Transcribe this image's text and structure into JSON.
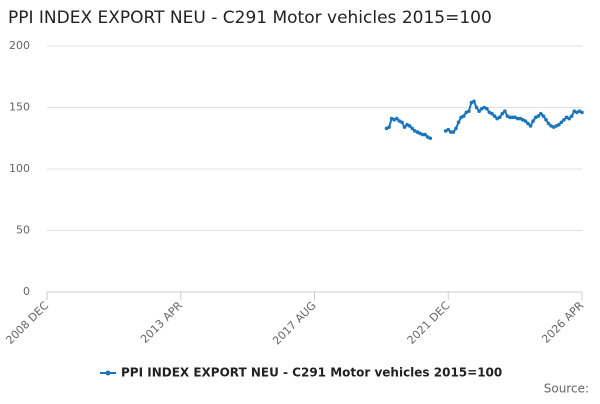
{
  "chart_data": {
    "type": "line",
    "title": "PPI INDEX EXPORT NEU - C291 Motor vehicles 2015=100",
    "source": "Source:",
    "x": [
      "2019-12",
      "2020-01",
      "2020-02",
      "2020-03",
      "2020-04",
      "2020-05",
      "2020-06",
      "2020-07",
      "2020-08",
      "2020-09",
      "2020-10",
      "2020-11",
      "2020-12",
      "2021-01",
      "2021-02",
      "2021-03",
      "2021-04",
      "2021-05",
      "2021-06",
      "2021-07",
      "2021-08",
      "2021-09",
      "2021-10",
      "2021-11",
      "2021-12",
      "2022-01",
      "2022-02",
      "2022-03",
      "2022-04",
      "2022-05",
      "2022-06",
      "2022-07",
      "2022-08",
      "2022-09",
      "2022-10",
      "2022-11",
      "2022-12",
      "2023-01",
      "2023-02",
      "2023-03",
      "2023-04",
      "2023-05",
      "2023-06",
      "2023-07",
      "2023-08",
      "2023-09",
      "2023-10",
      "2023-11",
      "2023-12",
      "2024-01",
      "2024-02",
      "2024-03",
      "2024-04",
      "2024-05",
      "2024-06",
      "2024-07",
      "2024-08",
      "2024-09",
      "2024-10",
      "2024-11",
      "2024-12",
      "2025-01",
      "2025-02",
      "2025-03",
      "2025-04",
      "2025-05",
      "2025-06",
      "2025-07",
      "2025-08",
      "2025-09",
      "2025-10",
      "2025-11",
      "2025-12",
      "2026-01",
      "2026-02",
      "2026-03",
      "2026-04"
    ],
    "series": [
      {
        "name": "PPI INDEX EXPORT NEU - C291 Motor vehicles 2015=100",
        "color": "#1a75bc",
        "values": [
          133,
          134,
          141,
          140,
          141,
          139,
          138,
          134,
          136,
          135,
          133,
          131,
          130,
          129,
          128,
          128,
          126,
          125,
          null,
          null,
          null,
          null,
          null,
          131,
          132,
          130,
          130,
          133,
          138,
          142,
          143,
          146,
          147,
          154,
          155,
          150,
          147,
          149,
          150,
          149,
          146,
          145,
          143,
          141,
          142,
          145,
          147,
          143,
          142,
          142,
          142,
          141,
          141,
          140,
          139,
          137,
          135,
          139,
          142,
          143,
          145,
          143,
          140,
          137,
          135,
          134,
          135,
          136,
          138,
          140,
          142,
          141,
          143,
          147,
          146,
          147,
          146
        ]
      }
    ],
    "xlim": [
      "2008-12",
      "2026-04"
    ],
    "xticks": [
      {
        "value": "2008-12",
        "label": "2008 DEC"
      },
      {
        "value": "2013-04",
        "label": "2013 APR"
      },
      {
        "value": "2017-08",
        "label": "2017 AUG"
      },
      {
        "value": "2021-12",
        "label": "2021 DEC"
      },
      {
        "value": "2026-04",
        "label": "2026 APR"
      }
    ],
    "ylim": [
      0,
      200
    ],
    "yticks": [
      0,
      50,
      100,
      150,
      200
    ],
    "grid": true,
    "legend": "bottom"
  }
}
